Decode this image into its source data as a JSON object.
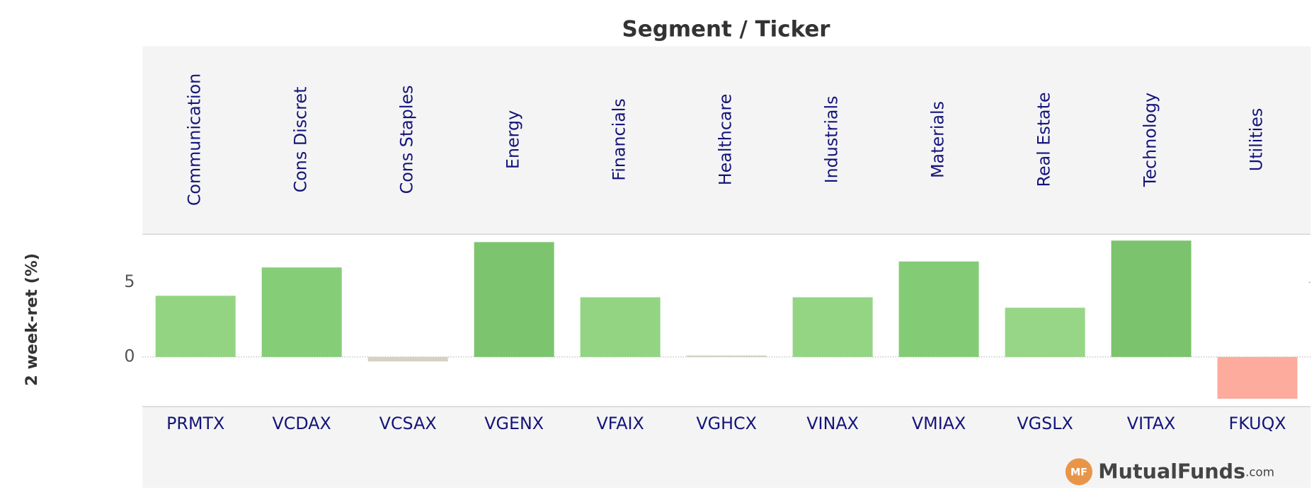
{
  "chart_data": {
    "type": "bar",
    "title": "Segment / Ticker",
    "y_label": "2 week-ret (%)",
    "segments": [
      "Communication",
      "Cons Discret",
      "Cons Staples",
      "Energy",
      "Financials",
      "Healthcare",
      "Industrials",
      "Materials",
      "Real Estate",
      "Technology",
      "Utilities"
    ],
    "categories": [
      "PRMTX",
      "VCDAX",
      "VCSAX",
      "VGENX",
      "VFAIX",
      "VGHCX",
      "VINAX",
      "VMIAX",
      "VGSLX",
      "VITAX",
      "FKUQX"
    ],
    "values": [
      4.1,
      6.0,
      -0.3,
      7.7,
      4.0,
      0.1,
      4.0,
      6.4,
      3.3,
      7.8,
      -2.8
    ],
    "colors": [
      "#92d482",
      "#86cd78",
      "#d4d2c2",
      "#7dc46e",
      "#92d482",
      "#d4d2c2",
      "#94d584",
      "#84cb76",
      "#96d686",
      "#7bc36c",
      "#fcab9c"
    ],
    "ylim": [
      -3.3,
      8.2
    ],
    "yticks": [
      0,
      5
    ],
    "logo": {
      "badge": "MF",
      "name": "MutualFunds",
      "suffix": ".com"
    }
  }
}
